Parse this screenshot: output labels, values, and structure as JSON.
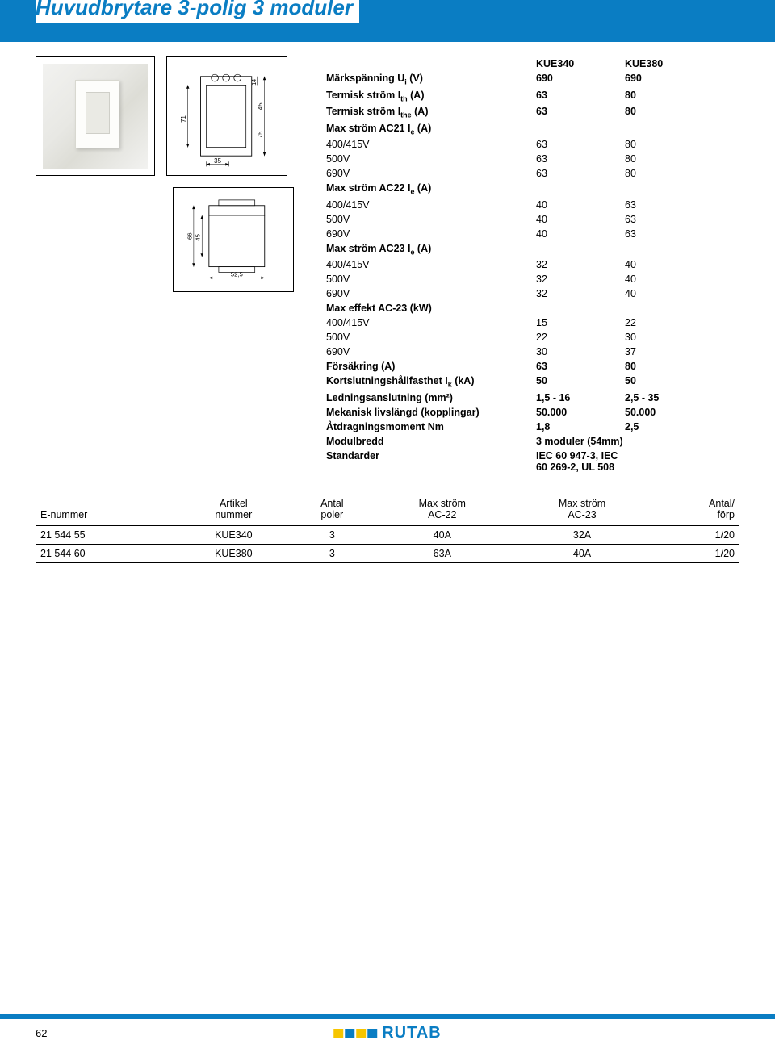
{
  "title": "Huvudbrytare 3-polig 3 moduler",
  "colors": {
    "brandBlue": "#0a7dc3",
    "logoYellow": "#f6c500",
    "white": "#ffffff",
    "black": "#000000"
  },
  "diagrams": {
    "photo": {
      "width": 148,
      "height": 148
    },
    "top_view": {
      "width_label": "35",
      "height_label": "71",
      "height2_label": "75",
      "inset_label": "14",
      "inset2_label": "45"
    },
    "side_view": {
      "width_label": "52,5",
      "h1_label": "66",
      "h2_label": "45"
    }
  },
  "spec_header": {
    "label": "",
    "col1": "KUE340",
    "col2": "KUE380"
  },
  "specs": [
    {
      "label_html": "Märkspänning U<sub>i</sub> (V)",
      "c1": "690",
      "c2": "690",
      "bold": true
    },
    {
      "label_html": "Termisk ström I<sub>th</sub> (A)",
      "c1": "63",
      "c2": "80",
      "bold": true
    },
    {
      "label_html": "Termisk ström I<sub>the</sub> (A)",
      "c1": "63",
      "c2": "80",
      "bold": true
    },
    {
      "label_html": "Max ström AC21 I<sub>e</sub> (A)",
      "c1": "",
      "c2": "",
      "bold": true
    },
    {
      "label_html": "400/415V",
      "c1": "63",
      "c2": "80"
    },
    {
      "label_html": "500V",
      "c1": "63",
      "c2": "80"
    },
    {
      "label_html": "690V",
      "c1": "63",
      "c2": "80"
    },
    {
      "label_html": "Max ström AC22 I<sub>e</sub> (A)",
      "c1": "",
      "c2": "",
      "bold": true
    },
    {
      "label_html": "400/415V",
      "c1": "40",
      "c2": "63"
    },
    {
      "label_html": "500V",
      "c1": "40",
      "c2": "63"
    },
    {
      "label_html": "690V",
      "c1": "40",
      "c2": "63"
    },
    {
      "label_html": "Max ström AC23 I<sub>e</sub> (A)",
      "c1": "",
      "c2": "",
      "bold": true
    },
    {
      "label_html": "400/415V",
      "c1": "32",
      "c2": "40"
    },
    {
      "label_html": "500V",
      "c1": "32",
      "c2": "40"
    },
    {
      "label_html": "690V",
      "c1": "32",
      "c2": "40"
    },
    {
      "label_html": "Max effekt AC-23 (kW)",
      "c1": "",
      "c2": "",
      "bold": true
    },
    {
      "label_html": "400/415V",
      "c1": "15",
      "c2": "22"
    },
    {
      "label_html": "500V",
      "c1": "22",
      "c2": "30"
    },
    {
      "label_html": "690V",
      "c1": "30",
      "c2": "37"
    },
    {
      "label_html": "Försäkring (A)",
      "c1": "63",
      "c2": "80",
      "bold": true
    },
    {
      "label_html": "Kortslutningshållfasthet I<sub>k</sub> (kA)",
      "c1": "50",
      "c2": "50",
      "bold": true
    },
    {
      "label_html": "Ledningsanslutning (mm²)",
      "c1": "1,5 - 16",
      "c2": "2,5 - 35",
      "bold": true
    },
    {
      "label_html": "Mekanisk livslängd (kopplingar)",
      "c1": "50.000",
      "c2": "50.000",
      "bold": true
    },
    {
      "label_html": "Åtdragningsmoment Nm",
      "c1": "1,8",
      "c2": "2,5",
      "bold": true
    },
    {
      "label_html": "Modulbredd",
      "c1": "3 moduler (54mm)",
      "c2": "",
      "bold": true
    },
    {
      "label_html": "Standarder",
      "c1": "IEC 60 947-3, IEC 60 269-2, UL 508",
      "c2": "",
      "bold": true
    }
  ],
  "order_table": {
    "columns": [
      "E-nummer",
      "Artikel\nnummer",
      "Antal\npoler",
      "Max ström\nAC-22",
      "Max ström\nAC-23",
      "Antal/\nförp"
    ],
    "rows": [
      [
        "21 544 55",
        "KUE340",
        "3",
        "40A",
        "32A",
        "1/20"
      ],
      [
        "21 544 60",
        "KUE380",
        "3",
        "63A",
        "40A",
        "1/20"
      ]
    ]
  },
  "footer": {
    "page": "62",
    "logo_text": "RUTAB"
  }
}
